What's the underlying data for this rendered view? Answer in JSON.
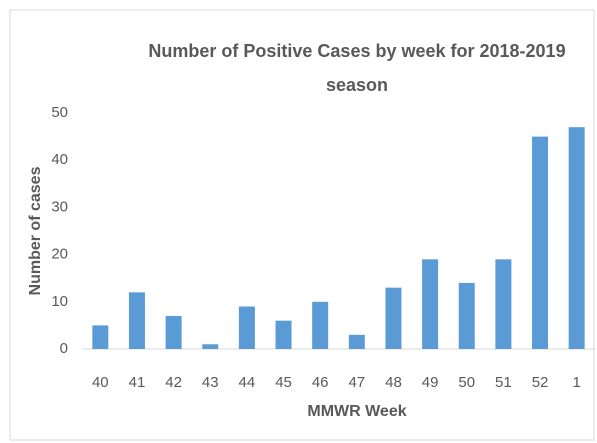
{
  "chart_data": {
    "type": "bar",
    "title": "Number of Positive Cases by week for 2018-2019 season",
    "x_label": "MMWR Week",
    "y_label": "Number of cases",
    "categories": [
      "40",
      "41",
      "42",
      "43",
      "44",
      "45",
      "46",
      "47",
      "48",
      "49",
      "50",
      "51",
      "52",
      "1"
    ],
    "values": [
      5,
      12,
      7,
      1,
      9,
      6,
      10,
      3,
      13,
      19,
      14,
      19,
      45,
      47
    ],
    "color": "#5b9bd5",
    "ylim": [
      0,
      50
    ],
    "yticks": [
      0,
      10,
      20,
      30,
      40,
      50
    ],
    "grid": false
  }
}
